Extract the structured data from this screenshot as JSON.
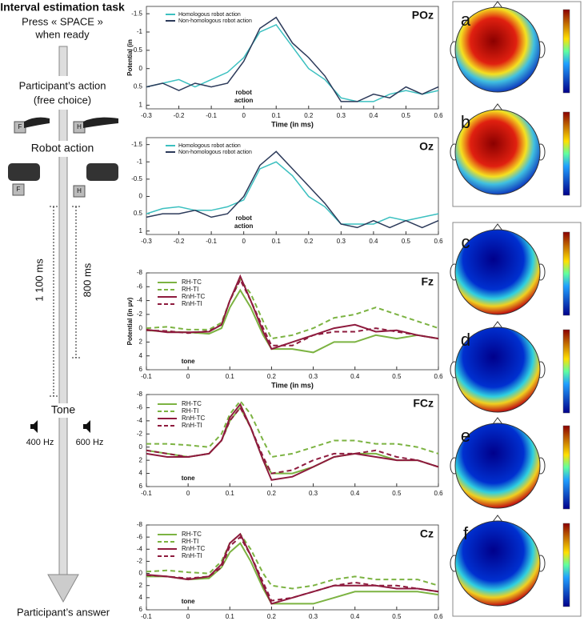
{
  "diagram": {
    "title": "Interval estimation task",
    "press": "Press « SPACE »",
    "ready": "when ready",
    "action": "Participant’s action",
    "free": "(free choice)",
    "robot": "Robot action",
    "key_f": "F",
    "key_h": "H",
    "long": "1 100 ms",
    "short": "800 ms",
    "tone": "Tone",
    "low": "400 Hz",
    "high": "600 Hz",
    "answer": "Participant’s answer"
  },
  "topomaps": {
    "labels": [
      "a",
      "b",
      "c",
      "d",
      "e",
      "f"
    ]
  },
  "chart_data": [
    {
      "type": "line",
      "title": "POz",
      "ylabel": "Potential (in",
      "xlabel": "Time (in ms)",
      "annotation": [
        "robot",
        "action"
      ],
      "y_inverted": true,
      "legend": "upper left",
      "x": [
        -0.3,
        -0.25,
        -0.2,
        -0.15,
        -0.1,
        -0.05,
        0,
        0.05,
        0.1,
        0.15,
        0.2,
        0.25,
        0.3,
        0.35,
        0.4,
        0.45,
        0.5,
        0.55,
        0.6
      ],
      "xlim": [
        -0.3,
        0.6
      ],
      "xticks": [
        -0.3,
        -0.2,
        -0.1,
        0,
        0.1,
        0.2,
        0.3,
        0.4,
        0.5,
        0.6
      ],
      "ylim": [
        -1.7,
        1.1
      ],
      "yticks": [
        -1.5,
        -1,
        -0.5,
        0,
        0.5,
        1
      ],
      "series": [
        {
          "name": "Homologous robot action",
          "color": "#3cc0c0",
          "values": [
            0.5,
            0.4,
            0.3,
            0.5,
            0.3,
            0.1,
            -0.3,
            -1.0,
            -1.2,
            -0.6,
            0.0,
            0.3,
            0.8,
            0.9,
            0.9,
            0.7,
            0.6,
            0.7,
            0.6
          ]
        },
        {
          "name": "Non-homologous robot action",
          "color": "#2c3a5a",
          "values": [
            0.5,
            0.4,
            0.6,
            0.4,
            0.5,
            0.4,
            -0.2,
            -1.1,
            -1.4,
            -0.7,
            -0.3,
            0.2,
            0.9,
            0.9,
            0.7,
            0.8,
            0.5,
            0.7,
            0.5
          ]
        }
      ]
    },
    {
      "type": "line",
      "title": "Oz",
      "annotation": [
        "robot",
        "action"
      ],
      "y_inverted": true,
      "legend": "upper left",
      "x": [
        -0.3,
        -0.25,
        -0.2,
        -0.15,
        -0.1,
        -0.05,
        0,
        0.05,
        0.1,
        0.15,
        0.2,
        0.25,
        0.3,
        0.35,
        0.4,
        0.45,
        0.5,
        0.55,
        0.6
      ],
      "xlim": [
        -0.3,
        0.6
      ],
      "xticks": [
        -0.3,
        -0.2,
        -0.1,
        0,
        0.1,
        0.2,
        0.3,
        0.4,
        0.5,
        0.6
      ],
      "ylim": [
        -1.7,
        1.1
      ],
      "yticks": [
        -1.5,
        -1,
        -0.5,
        0,
        0.5,
        1
      ],
      "series": [
        {
          "name": "Homologous robot action",
          "color": "#3cc0c0",
          "values": [
            0.5,
            0.35,
            0.3,
            0.4,
            0.4,
            0.3,
            0.1,
            -0.8,
            -1.0,
            -0.6,
            0.0,
            0.3,
            0.8,
            0.8,
            0.8,
            0.6,
            0.7,
            0.6,
            0.5
          ]
        },
        {
          "name": "Non-homologous robot action",
          "color": "#2c3a5a",
          "values": [
            0.6,
            0.5,
            0.5,
            0.4,
            0.6,
            0.5,
            0.0,
            -0.9,
            -1.3,
            -0.8,
            -0.3,
            0.2,
            0.8,
            0.9,
            0.7,
            0.9,
            0.7,
            0.9,
            0.7
          ]
        }
      ]
    },
    {
      "type": "line",
      "title": "Fz",
      "ylabel": "Potential (in µv)",
      "xlabel": "Time (in ms)",
      "annotation": [
        "tone"
      ],
      "y_inverted": true,
      "legend": "upper left",
      "x": [
        -0.1,
        -0.05,
        0,
        0.05,
        0.08,
        0.1,
        0.125,
        0.15,
        0.18,
        0.2,
        0.25,
        0.3,
        0.35,
        0.4,
        0.45,
        0.5,
        0.55,
        0.6
      ],
      "xlim": [
        -0.1,
        0.6
      ],
      "xticks": [
        -0.1,
        0,
        0.1,
        0.2,
        0.3,
        0.4,
        0.5,
        0.6
      ],
      "ylim": [
        -8,
        6
      ],
      "yticks": [
        -8,
        -6,
        -4,
        -2,
        0,
        2,
        4,
        6
      ],
      "series": [
        {
          "name": "RH-TC",
          "color": "#7cb342",
          "dash": false,
          "values": [
            0.3,
            0.5,
            0.6,
            0.8,
            0.0,
            -3,
            -5.5,
            -3,
            1,
            3,
            3,
            3.5,
            2,
            2,
            1,
            1.5,
            1,
            1.5
          ]
        },
        {
          "name": "RH-TI",
          "color": "#7cb342",
          "dash": true,
          "values": [
            0,
            -0.2,
            0.2,
            0.2,
            -0.8,
            -4,
            -7,
            -5,
            -1,
            1.5,
            1,
            0,
            -1.5,
            -2,
            -3,
            -2,
            -1,
            0
          ]
        },
        {
          "name": "RnH-TC",
          "color": "#8e1b3e",
          "dash": false,
          "values": [
            0.2,
            0.6,
            0.6,
            0.5,
            -0.5,
            -4,
            -7.5,
            -4,
            0.5,
            3,
            2,
            1,
            0,
            -0.5,
            0.5,
            0.3,
            1,
            1.5
          ]
        },
        {
          "name": "RnH-TI",
          "color": "#8e1b3e",
          "dash": true,
          "values": [
            0.3,
            0.4,
            0.7,
            0.4,
            -0.5,
            -4,
            -7,
            -4,
            0,
            2.5,
            2.5,
            1,
            0.5,
            0.5,
            0,
            0.5,
            1,
            1.5
          ]
        }
      ]
    },
    {
      "type": "line",
      "title": "FCz",
      "annotation": [
        "tone"
      ],
      "y_inverted": true,
      "legend": "upper left",
      "x": [
        -0.1,
        -0.05,
        0,
        0.05,
        0.08,
        0.1,
        0.125,
        0.15,
        0.18,
        0.2,
        0.25,
        0.3,
        0.35,
        0.4,
        0.45,
        0.5,
        0.55,
        0.6
      ],
      "xlim": [
        -0.1,
        0.6
      ],
      "xticks": [
        -0.1,
        0,
        0.1,
        0.2,
        0.3,
        0.4,
        0.5,
        0.6
      ],
      "ylim": [
        -8,
        6
      ],
      "yticks": [
        -8,
        -6,
        -4,
        -2,
        0,
        2,
        4,
        6
      ],
      "series": [
        {
          "name": "RH-TC",
          "color": "#7cb342",
          "dash": false,
          "values": [
            0.5,
            1,
            1.5,
            1,
            -1,
            -4,
            -6,
            -3,
            2,
            4,
            4,
            3,
            1.5,
            1,
            1,
            2,
            2,
            3
          ]
        },
        {
          "name": "RH-TI",
          "color": "#7cb342",
          "dash": true,
          "values": [
            -0.5,
            -0.5,
            -0.3,
            0,
            -2,
            -5,
            -7,
            -5,
            -1,
            1.5,
            1,
            0,
            -1,
            -1,
            -0.5,
            -0.5,
            0,
            1
          ]
        },
        {
          "name": "RnH-TC",
          "color": "#8e1b3e",
          "dash": false,
          "values": [
            1,
            1.5,
            1.5,
            1,
            -1,
            -4.5,
            -6.5,
            -3,
            2,
            5,
            4.5,
            3,
            1.5,
            1,
            1.5,
            2,
            2,
            3
          ]
        },
        {
          "name": "RnH-TI",
          "color": "#8e1b3e",
          "dash": true,
          "values": [
            0.5,
            1,
            1.5,
            1,
            -1,
            -4,
            -6,
            -3,
            1.5,
            4,
            3.5,
            2,
            1,
            1,
            0.5,
            1.5,
            2,
            3
          ]
        }
      ]
    },
    {
      "type": "line",
      "title": "Cz",
      "annotation": [
        "tone"
      ],
      "y_inverted": true,
      "legend": "upper left",
      "x": [
        -0.1,
        -0.05,
        0,
        0.05,
        0.08,
        0.1,
        0.125,
        0.15,
        0.18,
        0.2,
        0.25,
        0.3,
        0.35,
        0.4,
        0.45,
        0.5,
        0.55,
        0.6
      ],
      "xlim": [
        -0.1,
        0.6
      ],
      "xticks": [
        -0.1,
        0,
        0.1,
        0.2,
        0.3,
        0.4,
        0.5,
        0.6
      ],
      "ylim": [
        -8,
        6
      ],
      "yticks": [
        -8,
        -6,
        -4,
        -2,
        0,
        2,
        4,
        6
      ],
      "series": [
        {
          "name": "RH-TC",
          "color": "#7cb342",
          "dash": false,
          "values": [
            0.5,
            0.5,
            1,
            0.8,
            -1,
            -3.5,
            -5,
            -2,
            2.5,
            5,
            5,
            5,
            4,
            3,
            3,
            3,
            3,
            3.5
          ]
        },
        {
          "name": "RH-TI",
          "color": "#7cb342",
          "dash": true,
          "values": [
            -0.3,
            -0.5,
            -0.2,
            0,
            -2,
            -5,
            -6.5,
            -4,
            0,
            2,
            2.5,
            2,
            1,
            0.5,
            1,
            1,
            1,
            2
          ]
        },
        {
          "name": "RnH-TC",
          "color": "#8e1b3e",
          "dash": false,
          "values": [
            0.2,
            0.5,
            1,
            0.5,
            -1.5,
            -5,
            -6.5,
            -3,
            2,
            5,
            4,
            3,
            2,
            2,
            2,
            2.5,
            2.5,
            3
          ]
        },
        {
          "name": "RnH-TI",
          "color": "#8e1b3e",
          "dash": true,
          "values": [
            0.3,
            0.5,
            0.8,
            0.5,
            -1,
            -4.5,
            -6,
            -3,
            1.5,
            4.5,
            4,
            3,
            2,
            1.5,
            2,
            2,
            2.5,
            3
          ]
        }
      ]
    }
  ]
}
